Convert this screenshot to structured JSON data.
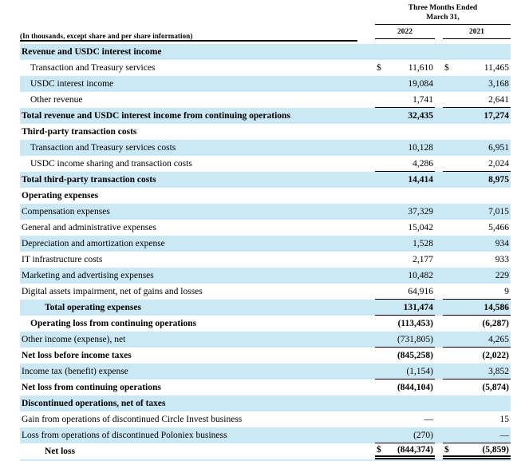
{
  "table": {
    "period_header_line1": "Three Months Ended",
    "period_header_line2": "March 31,",
    "units_note": "(In thousands, except share and per share information)",
    "columns": [
      "2022",
      "2021"
    ],
    "colors": {
      "stripe": "#cbe8f7",
      "text": "#000000",
      "rule": "#000000"
    },
    "rows": [
      {
        "label": "Revenue and USDC interest income",
        "indent": 0,
        "bold": true,
        "stripe": true,
        "dollar": false,
        "v2022": "",
        "v2021": "",
        "underline": "none"
      },
      {
        "label": "Transaction and Treasury services",
        "indent": 1,
        "bold": false,
        "stripe": false,
        "dollar": true,
        "v2022": "11,610",
        "v2021": "11,465",
        "underline": "none"
      },
      {
        "label": "USDC interest income",
        "indent": 1,
        "bold": false,
        "stripe": true,
        "dollar": false,
        "v2022": "19,084",
        "v2021": "3,168",
        "underline": "none"
      },
      {
        "label": "Other revenue",
        "indent": 1,
        "bold": false,
        "stripe": false,
        "dollar": false,
        "v2022": "1,741",
        "v2021": "2,641",
        "underline": "single"
      },
      {
        "label": "Total revenue and USDC interest income from continuing operations",
        "indent": 0,
        "bold": true,
        "stripe": true,
        "dollar": false,
        "v2022": "32,435",
        "v2021": "17,274",
        "underline": "none"
      },
      {
        "label": "Third-party transaction costs",
        "indent": 0,
        "bold": true,
        "stripe": false,
        "dollar": false,
        "v2022": "",
        "v2021": "",
        "underline": "none"
      },
      {
        "label": "Transaction and Treasury services costs",
        "indent": 1,
        "bold": false,
        "stripe": true,
        "dollar": false,
        "v2022": "10,128",
        "v2021": "6,951",
        "underline": "none"
      },
      {
        "label": "USDC income sharing and transaction costs",
        "indent": 1,
        "bold": false,
        "stripe": false,
        "dollar": false,
        "v2022": "4,286",
        "v2021": "2,024",
        "underline": "single"
      },
      {
        "label": "Total third-party transaction costs",
        "indent": 0,
        "bold": true,
        "stripe": true,
        "dollar": false,
        "v2022": "14,414",
        "v2021": "8,975",
        "underline": "none"
      },
      {
        "label": "Operating expenses",
        "indent": 0,
        "bold": true,
        "stripe": false,
        "dollar": false,
        "v2022": "",
        "v2021": "",
        "underline": "none"
      },
      {
        "label": "Compensation expenses",
        "indent": 0,
        "bold": false,
        "stripe": true,
        "dollar": false,
        "v2022": "37,329",
        "v2021": "7,015",
        "underline": "none"
      },
      {
        "label": "General and administrative expenses",
        "indent": 0,
        "bold": false,
        "stripe": false,
        "dollar": false,
        "v2022": "15,042",
        "v2021": "5,466",
        "underline": "none"
      },
      {
        "label": "Depreciation and amortization expense",
        "indent": 0,
        "bold": false,
        "stripe": true,
        "dollar": false,
        "v2022": "1,528",
        "v2021": "934",
        "underline": "none"
      },
      {
        "label": "IT infrastructure costs",
        "indent": 0,
        "bold": false,
        "stripe": false,
        "dollar": false,
        "v2022": "2,177",
        "v2021": "933",
        "underline": "none"
      },
      {
        "label": "Marketing and advertising expenses",
        "indent": 0,
        "bold": false,
        "stripe": true,
        "dollar": false,
        "v2022": "10,482",
        "v2021": "229",
        "underline": "none"
      },
      {
        "label": "Digital assets impairment, net of gains and losses",
        "indent": 0,
        "bold": false,
        "stripe": false,
        "dollar": false,
        "v2022": "64,916",
        "v2021": "9",
        "underline": "single"
      },
      {
        "label": "Total operating expenses",
        "indent": 2,
        "bold": true,
        "stripe": true,
        "dollar": false,
        "v2022": "131,474",
        "v2021": "14,586",
        "underline": "single"
      },
      {
        "label": "Operating loss from continuing operations",
        "indent": 1,
        "bold": true,
        "stripe": false,
        "dollar": false,
        "v2022": "(113,453)",
        "v2021": "(6,287)",
        "underline": "none"
      },
      {
        "label": "Other income (expense), net",
        "indent": 0,
        "bold": false,
        "stripe": true,
        "dollar": false,
        "v2022": "(731,805)",
        "v2021": "4,265",
        "underline": "single"
      },
      {
        "label": "Net loss before income taxes",
        "indent": 0,
        "bold": true,
        "stripe": false,
        "dollar": false,
        "v2022": "(845,258)",
        "v2021": "(2,022)",
        "underline": "none"
      },
      {
        "label": "Income tax (benefit) expense",
        "indent": 0,
        "bold": false,
        "stripe": true,
        "dollar": false,
        "v2022": "(1,154)",
        "v2021": "3,852",
        "underline": "single"
      },
      {
        "label": "Net loss from continuing operations",
        "indent": 0,
        "bold": true,
        "stripe": false,
        "dollar": false,
        "v2022": "(844,104)",
        "v2021": "(5,874)",
        "underline": "none"
      },
      {
        "label": "Discontinued operations, net of taxes",
        "indent": 0,
        "bold": true,
        "stripe": true,
        "dollar": false,
        "v2022": "",
        "v2021": "",
        "underline": "none"
      },
      {
        "label": "Gain from operations of discontinued Circle Invest business",
        "indent": 0,
        "bold": false,
        "stripe": false,
        "dollar": false,
        "v2022": "—",
        "v2021": "15",
        "underline": "none"
      },
      {
        "label": "Loss from operations of discontinued Poloniex business",
        "indent": 0,
        "bold": false,
        "stripe": true,
        "dollar": false,
        "v2022": "(270)",
        "v2021": "—",
        "underline": "single"
      },
      {
        "label": "Net loss",
        "indent": 2,
        "bold": true,
        "stripe": false,
        "dollar": true,
        "v2022": "(844,374)",
        "v2021": "(5,859)",
        "underline": "double"
      }
    ]
  }
}
